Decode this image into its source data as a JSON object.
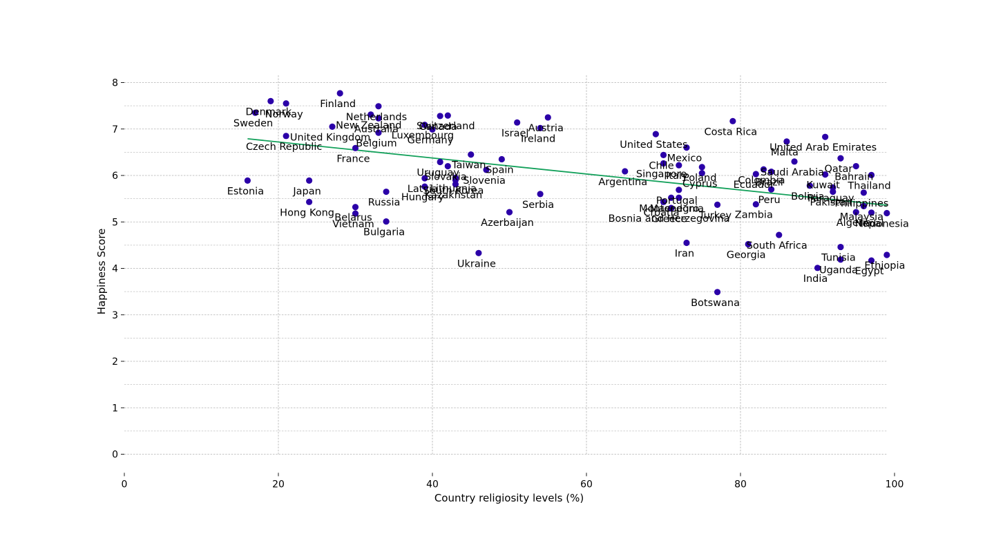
{
  "chart_data": {
    "type": "scatter",
    "title": "",
    "xlabel": "Country religiosity levels (%)",
    "ylabel": "Happiness Score",
    "xlim": [
      0,
      100
    ],
    "ylim": [
      -0.4,
      8.2
    ],
    "xticks": [
      0,
      20,
      40,
      60,
      80,
      100
    ],
    "yticks": [
      0,
      1,
      2,
      3,
      4,
      5,
      6,
      7,
      8
    ],
    "grid": true,
    "legend": "none",
    "colors": {
      "points": "#2b00a8",
      "trend": "#12a05a"
    },
    "trendline": {
      "x": [
        16,
        99
      ],
      "y": [
        6.79,
        5.36
      ]
    },
    "points": [
      {
        "name": "Denmark",
        "x": 19,
        "y": 7.6
      },
      {
        "name": "Norway",
        "x": 21,
        "y": 7.55
      },
      {
        "name": "Finland",
        "x": 28,
        "y": 7.77
      },
      {
        "name": "Sweden",
        "x": 17,
        "y": 7.35
      },
      {
        "name": "Netherlands",
        "x": 33,
        "y": 7.49
      },
      {
        "name": "Switzerland",
        "x": 42,
        "y": 7.29
      },
      {
        "name": "New Zealand",
        "x": 32,
        "y": 7.31
      },
      {
        "name": "Australia",
        "x": 33,
        "y": 7.23
      },
      {
        "name": "Canada",
        "x": 41,
        "y": 7.28
      },
      {
        "name": "Luxembourg",
        "x": 39,
        "y": 7.09
      },
      {
        "name": "Germany",
        "x": 40,
        "y": 6.99
      },
      {
        "name": "United Kingdom",
        "x": 27,
        "y": 7.05
      },
      {
        "name": "Belgium",
        "x": 33,
        "y": 6.92
      },
      {
        "name": "Czech Republic",
        "x": 21,
        "y": 6.85
      },
      {
        "name": "France",
        "x": 30,
        "y": 6.59
      },
      {
        "name": "Austria",
        "x": 55,
        "y": 7.25
      },
      {
        "name": "Israel",
        "x": 51,
        "y": 7.14
      },
      {
        "name": "Ireland",
        "x": 54,
        "y": 7.02
      },
      {
        "name": "Costa Rica",
        "x": 79,
        "y": 7.17
      },
      {
        "name": "United States",
        "x": 69,
        "y": 6.89
      },
      {
        "name": "Mexico",
        "x": 73,
        "y": 6.6
      },
      {
        "name": "Chile",
        "x": 70,
        "y": 6.44
      },
      {
        "name": "Malta",
        "x": 86,
        "y": 6.73
      },
      {
        "name": "United Arab Emirates",
        "x": 91,
        "y": 6.83
      },
      {
        "name": "Saudi Arabia",
        "x": 87,
        "y": 6.3
      },
      {
        "name": "Qatar",
        "x": 93,
        "y": 6.37
      },
      {
        "name": "Bahrain",
        "x": 95,
        "y": 6.2
      },
      {
        "name": "Taiwan",
        "x": 45,
        "y": 6.45
      },
      {
        "name": "Spain",
        "x": 49,
        "y": 6.35
      },
      {
        "name": "Uruguay",
        "x": 41,
        "y": 6.29
      },
      {
        "name": "Slovakia",
        "x": 42,
        "y": 6.2
      },
      {
        "name": "Lithuania",
        "x": 43,
        "y": 5.95
      },
      {
        "name": "Slovenia",
        "x": 47,
        "y": 6.12
      },
      {
        "name": "Latvia",
        "x": 39,
        "y": 5.94
      },
      {
        "name": "South Korea",
        "x": 43,
        "y": 5.9
      },
      {
        "name": "Kazakhstan",
        "x": 43,
        "y": 5.81
      },
      {
        "name": "Hungary",
        "x": 39,
        "y": 5.76
      },
      {
        "name": "Russia",
        "x": 34,
        "y": 5.65
      },
      {
        "name": "Belarus",
        "x": 30,
        "y": 5.32
      },
      {
        "name": "Vietnam",
        "x": 30,
        "y": 5.18
      },
      {
        "name": "Bulgaria",
        "x": 34,
        "y": 5.01
      },
      {
        "name": "Estonia",
        "x": 16,
        "y": 5.89
      },
      {
        "name": "Japan",
        "x": 24,
        "y": 5.89
      },
      {
        "name": "Hong Kong",
        "x": 24,
        "y": 5.43
      },
      {
        "name": "Serbia",
        "x": 54,
        "y": 5.6
      },
      {
        "name": "Azerbaijan",
        "x": 50,
        "y": 5.21
      },
      {
        "name": "Ukraine",
        "x": 46,
        "y": 4.33
      },
      {
        "name": "Argentina",
        "x": 65,
        "y": 6.09
      },
      {
        "name": "Singapore",
        "x": 70,
        "y": 6.26
      },
      {
        "name": "Italy",
        "x": 72,
        "y": 6.22
      },
      {
        "name": "Poland",
        "x": 75,
        "y": 6.18
      },
      {
        "name": "Cyprus",
        "x": 75,
        "y": 6.05
      },
      {
        "name": "Portugal",
        "x": 72,
        "y": 5.69
      },
      {
        "name": "Montenegro",
        "x": 71,
        "y": 5.52
      },
      {
        "name": "Macedonia",
        "x": 72,
        "y": 5.52
      },
      {
        "name": "Croatia",
        "x": 70,
        "y": 5.43
      },
      {
        "name": "Bosnia and Herzegovina",
        "x": 71,
        "y": 5.3
      },
      {
        "name": "Greece",
        "x": 71,
        "y": 5.29
      },
      {
        "name": "Iran",
        "x": 73,
        "y": 4.55
      },
      {
        "name": "Botswana",
        "x": 77,
        "y": 3.49
      },
      {
        "name": "Ecuador",
        "x": 82,
        "y": 6.03
      },
      {
        "name": "Colombia",
        "x": 83,
        "y": 6.13
      },
      {
        "name": "Brazil",
        "x": 84,
        "y": 6.08
      },
      {
        "name": "Turkey",
        "x": 77,
        "y": 5.37
      },
      {
        "name": "Peru",
        "x": 84,
        "y": 5.7
      },
      {
        "name": "Kuwait",
        "x": 91,
        "y": 6.02
      },
      {
        "name": "Thailand",
        "x": 97,
        "y": 6.01
      },
      {
        "name": "Bolivia",
        "x": 89,
        "y": 5.78
      },
      {
        "name": "Paraguay",
        "x": 92,
        "y": 5.74
      },
      {
        "name": "Pakistan",
        "x": 92,
        "y": 5.65
      },
      {
        "name": "Philippines",
        "x": 96,
        "y": 5.63
      },
      {
        "name": "Malaysia",
        "x": 96,
        "y": 5.34
      },
      {
        "name": "Algeria",
        "x": 95,
        "y": 5.21
      },
      {
        "name": "Nepal",
        "x": 97,
        "y": 5.2
      },
      {
        "name": "Indonesia",
        "x": 99,
        "y": 5.19
      },
      {
        "name": "Tunisia",
        "x": 93,
        "y": 4.46
      },
      {
        "name": "South Africa",
        "x": 85,
        "y": 4.72
      },
      {
        "name": "Georgia",
        "x": 81,
        "y": 4.52
      },
      {
        "name": "Uganda",
        "x": 93,
        "y": 4.19
      },
      {
        "name": "India",
        "x": 90,
        "y": 4.01
      },
      {
        "name": "Ethiopia",
        "x": 99,
        "y": 4.29
      },
      {
        "name": "Egypt",
        "x": 97,
        "y": 4.17
      },
      {
        "name": "Zambia",
        "x": 82,
        "y": 5.38
      }
    ]
  }
}
